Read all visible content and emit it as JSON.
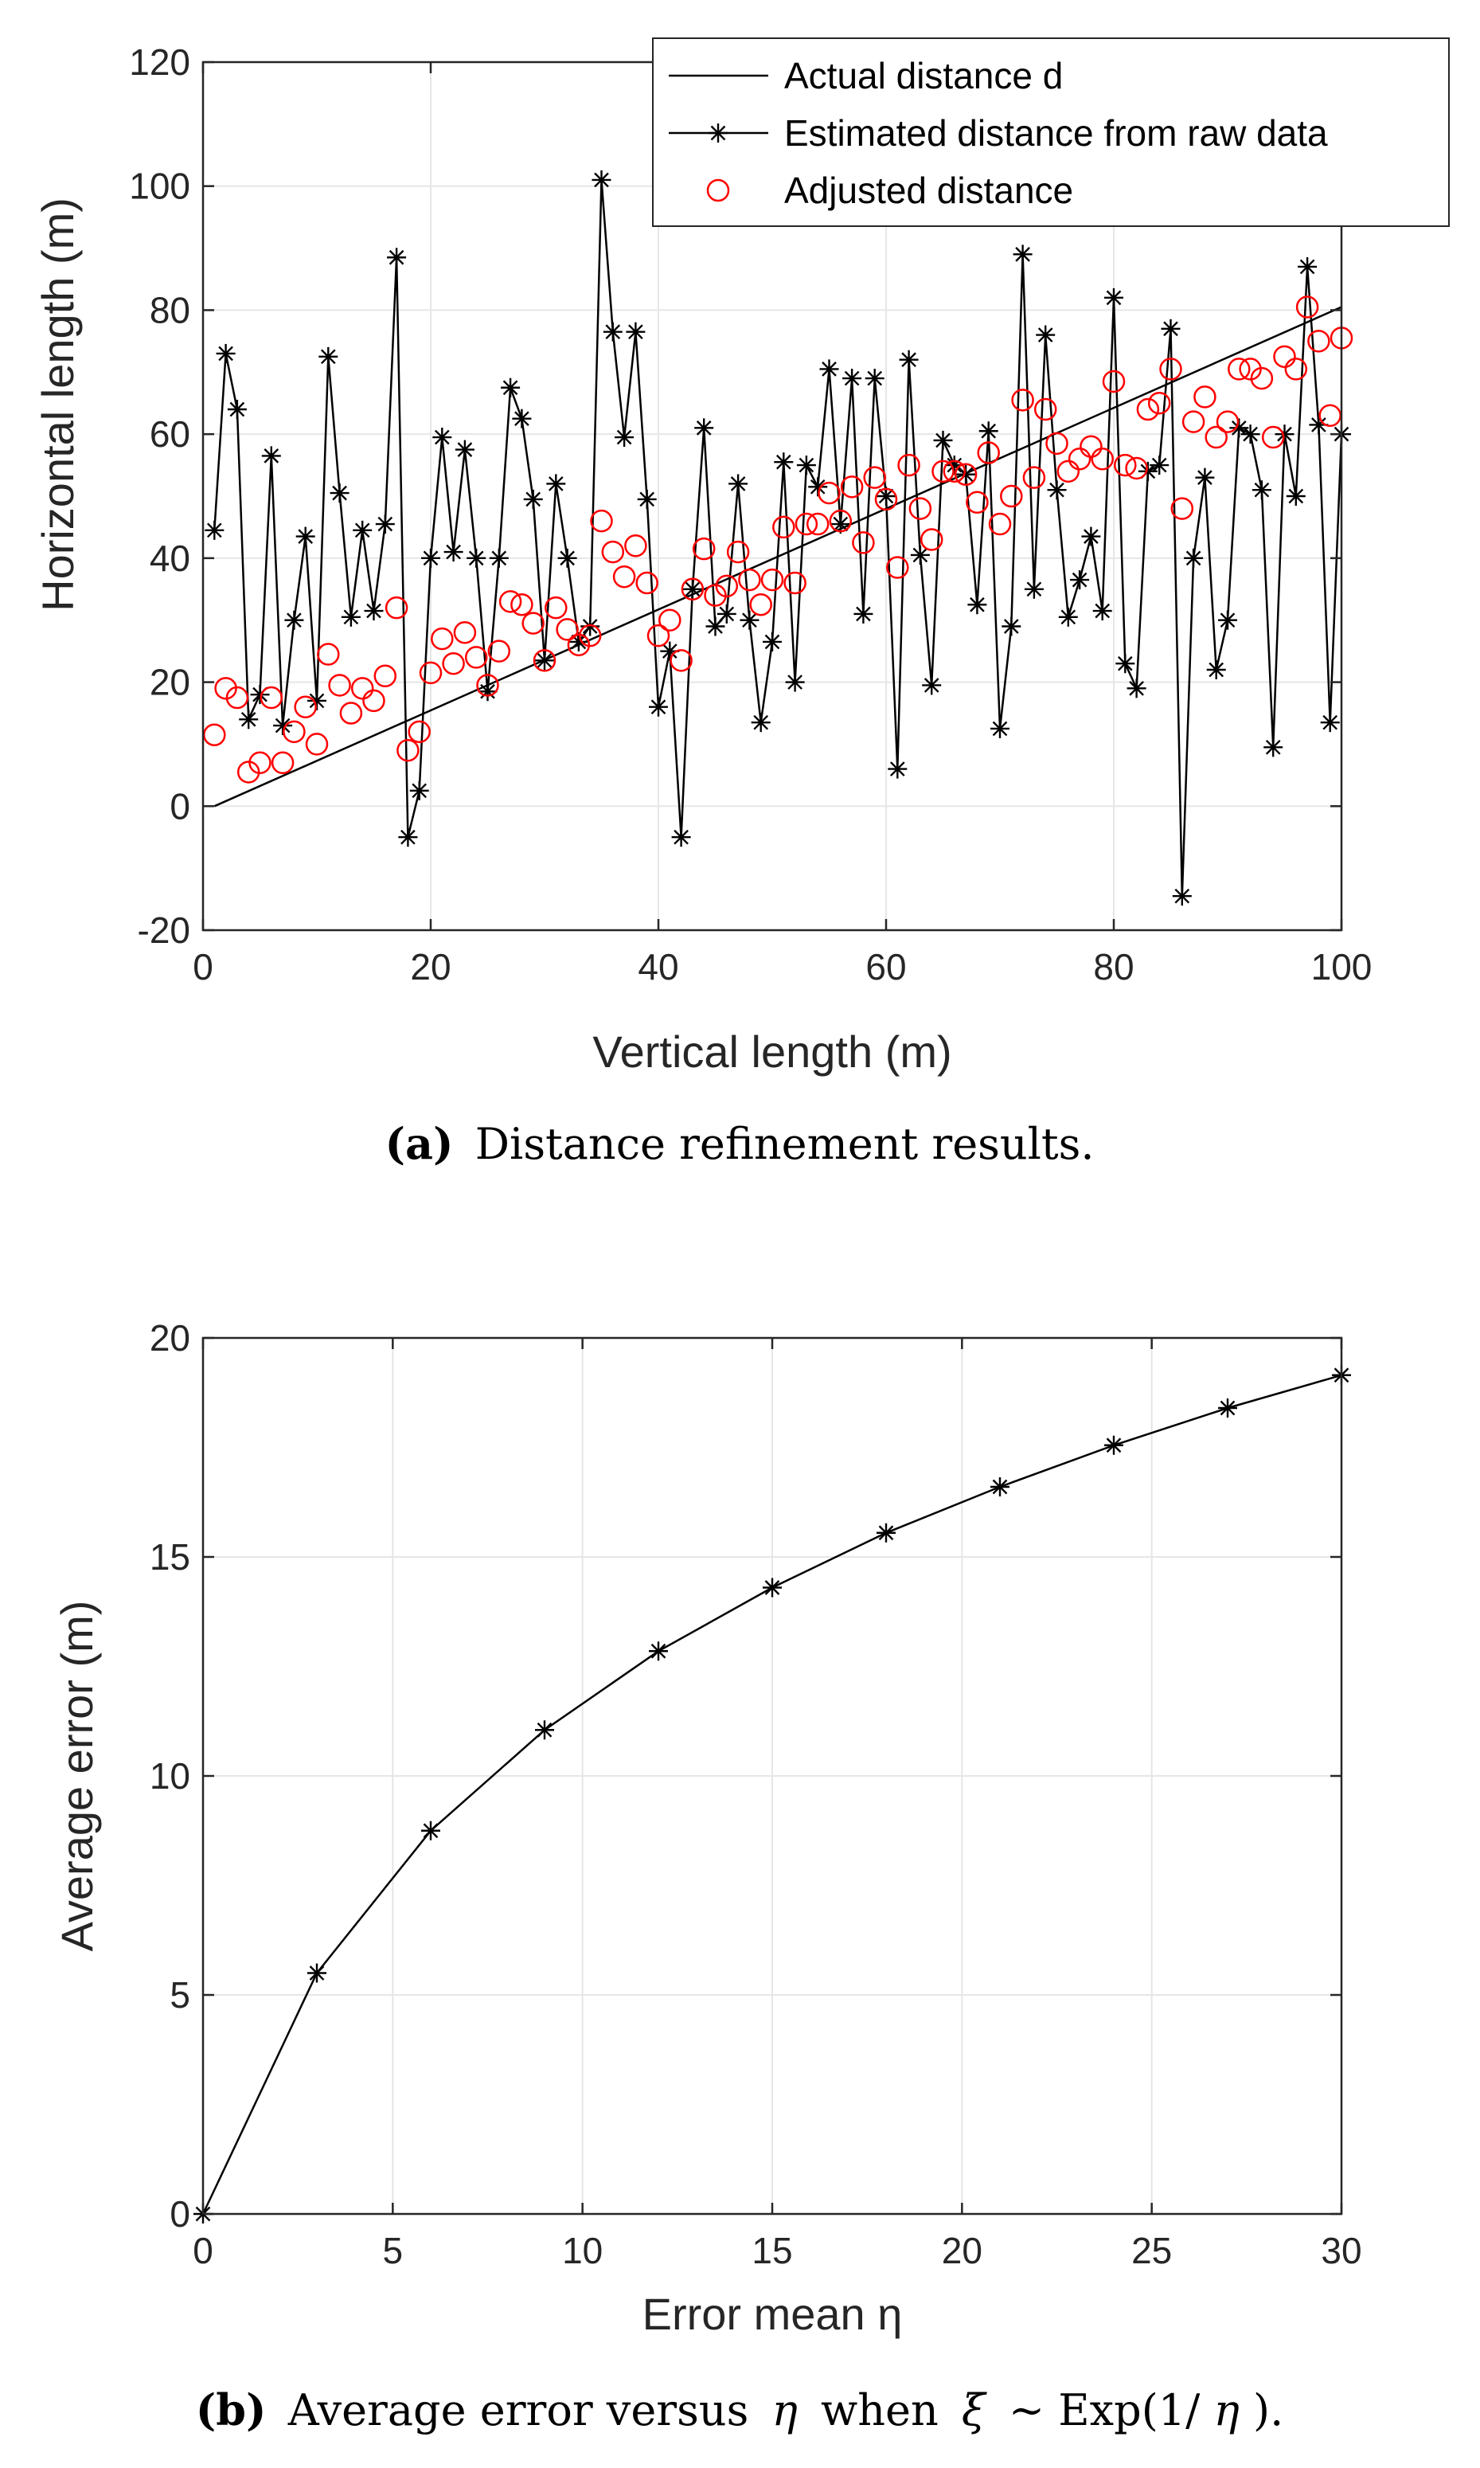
{
  "chart_data": [
    {
      "type": "line",
      "xlabel": "Vertical length (m)",
      "ylabel": "Horizontal length (m)",
      "xlim": [
        0,
        100
      ],
      "ylim": [
        -20,
        120
      ],
      "xticks": [
        0,
        20,
        40,
        60,
        80,
        100
      ],
      "yticks": [
        -20,
        0,
        20,
        40,
        60,
        80,
        100,
        120
      ],
      "grid": true,
      "legend_position": "top-right",
      "series": [
        {
          "name": "Actual distance d",
          "style": "line",
          "x": [
            1,
            100
          ],
          "y": [
            0,
            80.5
          ]
        },
        {
          "name": "Estimated distance from raw data",
          "style": "line-star",
          "x": [
            1,
            2,
            3,
            4,
            5,
            6,
            7,
            8,
            9,
            10,
            11,
            12,
            13,
            14,
            15,
            16,
            17,
            18,
            19,
            20,
            21,
            22,
            23,
            24,
            25,
            26,
            27,
            28,
            29,
            30,
            31,
            32,
            33,
            34,
            35,
            36,
            37,
            38,
            39,
            40,
            41,
            42,
            43,
            44,
            45,
            46,
            47,
            48,
            49,
            50,
            51,
            52,
            53,
            54,
            55,
            56,
            57,
            58,
            59,
            60,
            61,
            62,
            63,
            64,
            65,
            66,
            67,
            68,
            69,
            70,
            71,
            72,
            73,
            74,
            75,
            76,
            77,
            78,
            79,
            80,
            81,
            82,
            83,
            84,
            85,
            86,
            87,
            88,
            89,
            90,
            91,
            92,
            93,
            94,
            95,
            96,
            97,
            98,
            99,
            100
          ],
          "y": [
            44.5,
            73,
            64,
            14,
            18,
            56.5,
            13,
            30,
            43.5,
            17,
            72.5,
            50.5,
            30.5,
            44.5,
            31.5,
            45.5,
            88.5,
            -5,
            2.5,
            40,
            59.5,
            41,
            57.5,
            40,
            18.5,
            40,
            67.5,
            62.5,
            49.5,
            23.5,
            52,
            40,
            26.5,
            29,
            101,
            76.5,
            59.5,
            76.5,
            49.5,
            16,
            25,
            -5,
            35,
            61,
            29,
            31,
            52,
            30,
            13.5,
            26.5,
            55.5,
            20,
            55,
            51.5,
            70.5,
            45.5,
            69,
            31,
            69,
            50,
            6,
            72,
            40.5,
            19.5,
            59,
            55,
            53.5,
            32.5,
            60.5,
            12.5,
            29,
            89,
            35,
            76,
            51,
            30.5,
            36.5,
            43.5,
            31.5,
            82,
            23,
            19,
            54,
            55,
            77,
            -14.5,
            40,
            53,
            22,
            30,
            61,
            60,
            51,
            9.5,
            60,
            50,
            87,
            61.5,
            13.5,
            60
          ]
        },
        {
          "name": "Adjusted distance",
          "style": "markers-circle",
          "x": [
            1,
            2,
            3,
            4,
            5,
            6,
            7,
            8,
            9,
            10,
            11,
            12,
            13,
            14,
            15,
            16,
            17,
            18,
            19,
            20,
            21,
            22,
            23,
            24,
            25,
            26,
            27,
            28,
            29,
            30,
            31,
            32,
            33,
            34,
            35,
            36,
            37,
            38,
            39,
            40,
            41,
            42,
            43,
            44,
            45,
            46,
            47,
            48,
            49,
            50,
            51,
            52,
            53,
            54,
            55,
            56,
            57,
            58,
            59,
            60,
            61,
            62,
            63,
            64,
            65,
            66,
            67,
            68,
            69,
            70,
            71,
            72,
            73,
            74,
            75,
            76,
            77,
            78,
            79,
            80,
            81,
            82,
            83,
            84,
            85,
            86,
            87,
            88,
            89,
            90,
            91,
            92,
            93,
            94,
            95,
            96,
            97,
            98,
            99,
            100
          ],
          "y": [
            11.5,
            19,
            17.5,
            5.5,
            7,
            17.5,
            7,
            12,
            16,
            10,
            24.5,
            19.5,
            15,
            19,
            17,
            21,
            32,
            9,
            12,
            21.5,
            27,
            23,
            28,
            24,
            19.5,
            25,
            33,
            32.5,
            29.5,
            23.5,
            32,
            28.5,
            26,
            27.5,
            46,
            41,
            37,
            42,
            36,
            27.5,
            30,
            23.5,
            35,
            41.5,
            34,
            35.5,
            41,
            36.5,
            32.5,
            36.5,
            45,
            36,
            45.5,
            45.5,
            50.5,
            46,
            51.5,
            42.5,
            53,
            49.5,
            38.5,
            55,
            48,
            43,
            54,
            54,
            53.5,
            49,
            57,
            45.5,
            50,
            65.5,
            53,
            64,
            58.5,
            54,
            56,
            58,
            56,
            68.5,
            55,
            54.5,
            64,
            65,
            70.5,
            48,
            62,
            66,
            59.5,
            62,
            70.5,
            70.5,
            69,
            59.5,
            72.5,
            70.5,
            80.5,
            75,
            63,
            75.5
          ]
        }
      ]
    },
    {
      "type": "line",
      "xlabel": "Error mean η",
      "ylabel": "Average error (m)",
      "xlim": [
        0,
        30
      ],
      "ylim": [
        0,
        20
      ],
      "xticks": [
        0,
        5,
        10,
        15,
        20,
        25,
        30
      ],
      "yticks": [
        0,
        5,
        10,
        15,
        20
      ],
      "grid": true,
      "series": [
        {
          "name": "Average error",
          "style": "line-star",
          "x": [
            0,
            3,
            6,
            9,
            12,
            15,
            18,
            21,
            24,
            27,
            30
          ],
          "y": [
            0,
            5.5,
            8.75,
            11.05,
            12.85,
            14.3,
            15.55,
            16.6,
            17.55,
            18.4,
            19.15
          ]
        }
      ]
    }
  ],
  "captions": {
    "a_label": "(a)",
    "a_text": "Distance refinement results.",
    "b_label": "(b)",
    "b_text_1": "Average error versus",
    "b_eta": "η",
    "b_text_2": "when",
    "b_xi": "ξ",
    "b_sim": "∼ Exp(1/",
    "b_eta2": "η",
    "b_close": ")."
  },
  "colors": {
    "line": "#000000",
    "adjusted": "#ff0000",
    "grid": "#e6e6e6",
    "axis": "#262626"
  }
}
